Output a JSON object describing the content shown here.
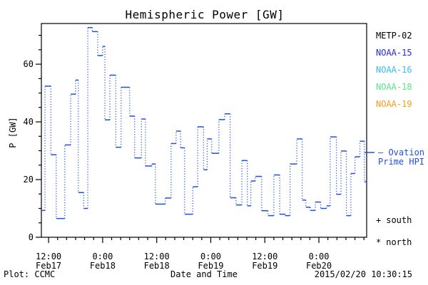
{
  "header": {
    "title": "Hemispheric Power [GW]"
  },
  "footer": {
    "credit": "Plot: CCMC",
    "xlabel": "Date and Time",
    "timestamp": "2015/02/20 10:30:15"
  },
  "legend": {
    "satellites": [
      {
        "label": "METP-02",
        "color": "#000000"
      },
      {
        "label": "NOAA-15",
        "color": "#2828d0"
      },
      {
        "label": "NOAA-16",
        "color": "#38bcec"
      },
      {
        "label": "NOAA-18",
        "color": "#5ce388"
      },
      {
        "label": "NOAA-19",
        "color": "#f39c1e"
      }
    ],
    "ovation": {
      "line1": "— Ovation",
      "line2": "Prime HPI",
      "color": "#2050dc"
    },
    "markers": [
      {
        "symbol": "+",
        "label": "south"
      },
      {
        "symbol": "*",
        "label": "north"
      }
    ]
  },
  "chart_data": {
    "type": "line",
    "subtype": "step-post",
    "title": "Hemispheric Power [GW]",
    "xlabel": "Date and Time",
    "ylabel": "P [GW]",
    "x_unit_note": "hours since 2015-02-17 00:00 UT",
    "x_min": 10.4,
    "x_max": 82.6,
    "y_min": 0,
    "y_max": 74.1,
    "x_minor_step_hours": 2,
    "y_minor_step": 5,
    "y_major_ticks": [
      0,
      20,
      40,
      60
    ],
    "x_major_ticks": [
      {
        "hour": 12,
        "time": "12:00",
        "date": "Feb17"
      },
      {
        "hour": 24,
        "time": "0:00",
        "date": "Feb18"
      },
      {
        "hour": 36,
        "time": "12:00",
        "date": "Feb18"
      },
      {
        "hour": 48,
        "time": "0:00",
        "date": "Feb19"
      },
      {
        "hour": 60,
        "time": "12:00",
        "date": "Feb19"
      },
      {
        "hour": 72,
        "time": "0:00",
        "date": "Feb20"
      }
    ],
    "legend_position": "right",
    "grid": false,
    "series": [
      {
        "name": "NOAA-15",
        "color": "#2050dc",
        "line_style": "solid horizontal steps with dotted vertical connectors",
        "steps": [
          [
            10.4,
            9.3
          ],
          [
            11.2,
            52.4
          ],
          [
            12.5,
            28.6
          ],
          [
            13.7,
            6.5
          ],
          [
            15.6,
            32.0
          ],
          [
            16.9,
            49.6
          ],
          [
            18.0,
            54.5
          ],
          [
            18.6,
            15.5
          ],
          [
            19.8,
            10.0
          ],
          [
            20.7,
            72.7
          ],
          [
            21.7,
            71.3
          ],
          [
            22.9,
            63.0
          ],
          [
            24.0,
            66.2
          ],
          [
            24.5,
            40.7
          ],
          [
            25.6,
            56.2
          ],
          [
            26.9,
            31.2
          ],
          [
            28.1,
            52.0
          ],
          [
            30.0,
            42.0
          ],
          [
            31.1,
            27.5
          ],
          [
            32.6,
            41.0
          ],
          [
            33.5,
            24.7
          ],
          [
            34.9,
            25.4
          ],
          [
            35.7,
            11.5
          ],
          [
            37.9,
            13.6
          ],
          [
            39.2,
            32.5
          ],
          [
            40.3,
            36.8
          ],
          [
            41.3,
            31.0
          ],
          [
            42.2,
            8.0
          ],
          [
            44.0,
            17.5
          ],
          [
            45.1,
            38.3
          ],
          [
            46.4,
            23.4
          ],
          [
            47.2,
            34.1
          ],
          [
            48.2,
            29.1
          ],
          [
            49.8,
            40.8
          ],
          [
            51.1,
            42.8
          ],
          [
            52.3,
            13.7
          ],
          [
            53.6,
            11.2
          ],
          [
            54.9,
            26.6
          ],
          [
            56.1,
            10.9
          ],
          [
            56.9,
            19.5
          ],
          [
            57.9,
            21.1
          ],
          [
            59.3,
            9.2
          ],
          [
            60.7,
            7.5
          ],
          [
            62.0,
            21.6
          ],
          [
            63.3,
            8.0
          ],
          [
            64.5,
            7.5
          ],
          [
            65.6,
            25.4
          ],
          [
            67.1,
            34.1
          ],
          [
            68.3,
            12.9
          ],
          [
            69.1,
            10.4
          ],
          [
            70.1,
            9.3
          ],
          [
            71.2,
            12.2
          ],
          [
            72.4,
            10.0
          ],
          [
            73.7,
            10.9
          ],
          [
            74.5,
            34.8
          ],
          [
            75.9,
            14.9
          ],
          [
            76.9,
            29.9
          ],
          [
            78.1,
            7.5
          ],
          [
            79.1,
            22.1
          ],
          [
            80.0,
            27.9
          ],
          [
            81.1,
            33.3
          ],
          [
            82.1,
            19.2
          ]
        ]
      }
    ]
  }
}
